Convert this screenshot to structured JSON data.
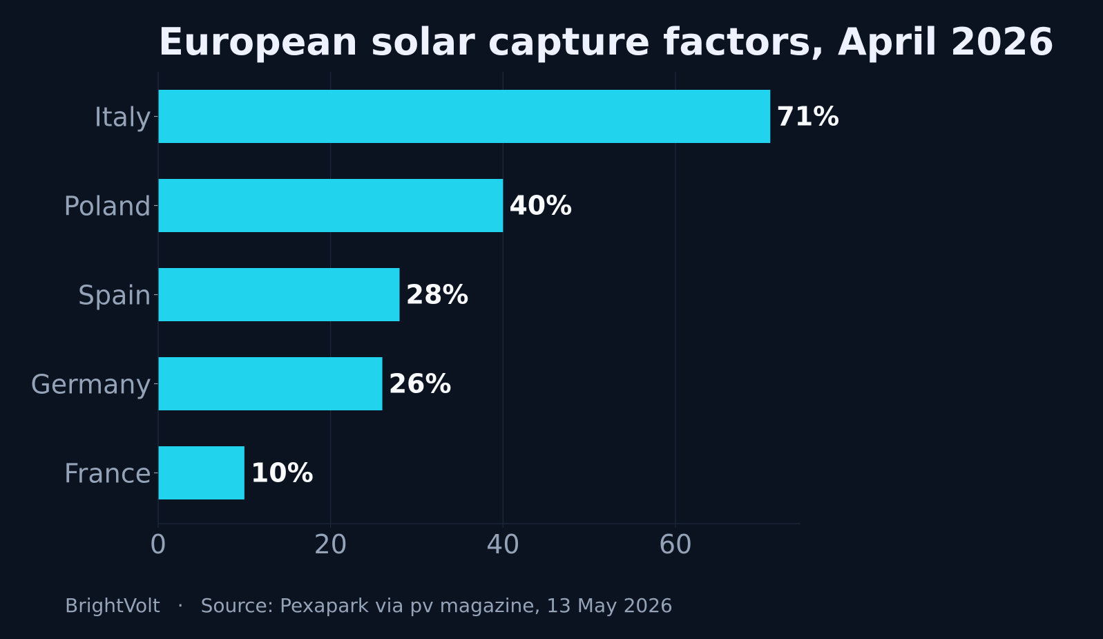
{
  "chart_data": {
    "type": "bar",
    "orientation": "horizontal",
    "title": "European solar capture factors, April 2026",
    "categories": [
      "Italy",
      "Poland",
      "Spain",
      "Germany",
      "France"
    ],
    "values": [
      71,
      40,
      28,
      26,
      10
    ],
    "value_labels": [
      "71%",
      "40%",
      "28%",
      "26%",
      "10%"
    ],
    "xlabel": "",
    "ylabel": "",
    "xlim": [
      0,
      74.5
    ],
    "xticks": [
      0,
      20,
      40,
      60
    ],
    "xtick_labels": [
      "0",
      "20",
      "40",
      "60"
    ],
    "grid": "vertical",
    "legend": "none"
  },
  "footer": {
    "brand": "BrightVolt",
    "separator": "·",
    "source": "Source: Pexapark via pv magazine, 13 May 2026"
  },
  "colors": {
    "background": "#0b1220",
    "bar": "#22d3ee",
    "grid": "#1e293b",
    "title": "#eef2ff",
    "axis_text": "#94a3b8",
    "value_text": "#f8fafc"
  }
}
